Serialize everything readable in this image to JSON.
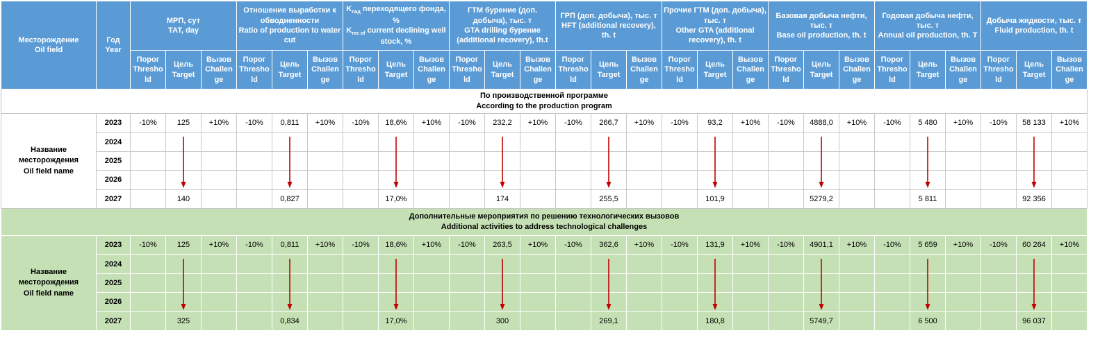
{
  "header": {
    "field": "Месторождение\nOil field",
    "year": "Год\nYear",
    "groups": [
      "МРП, сут\nТАТ, day",
      "Отношение выработки к обводненности\nRatio of production to water cut",
      "K_пад переходящего фонда, %\nK_rec of current declining well stock, %",
      "ГТМ бурение (доп. добыча), тыс. т\nGTA drilling бурение (additional recovery), th.t",
      "ГРП (доп. добыча), тыс. т\nHFT (additional recovery), th. t",
      "Прочие ГТМ (доп. добыча), тыс. т\nOther  GTA (additional recovery), th. t",
      "Базовая добыча нефти, тыс. т\nBase oil production, th. t",
      "Годовая добыча нефти, тыс. т\nAnnual oil production, th. T",
      "Добыча жидкости, тыс. т\nFluid  production, th. t"
    ],
    "sub": [
      "Порог\nThresho\nld",
      "Цель\nTarget",
      "Вызов\nChallen\nge"
    ]
  },
  "sections": [
    {
      "title": "По производственной программе\nAccording to the production program",
      "field_name": "Название\nместорождения\nOil field name",
      "years": [
        "2023",
        "2024",
        "2025",
        "2026",
        "2027"
      ],
      "threshold": "-10%",
      "challenge": "+10%",
      "start": [
        "125",
        "0,811",
        "18,6%",
        "232,2",
        "266,7",
        "93,2",
        "4888,0",
        "5 480",
        "58 133"
      ],
      "end": [
        "140",
        "0,827",
        "17,0%",
        "174",
        "255,5",
        "101,9",
        "5279,2",
        "5 811",
        "92 356"
      ]
    },
    {
      "title": "Дополнительные мероприятия по решению технологических вызовов\nAdditional activities to address technological challenges",
      "field_name": "Название\nместорождения\nOil field name",
      "years": [
        "2023",
        "2024",
        "2025",
        "2026",
        "2027"
      ],
      "threshold": "-10%",
      "challenge": "+10%",
      "start": [
        "125",
        "0,811",
        "18,6%",
        "263,5",
        "362,6",
        "131,9",
        "4901,1",
        "5 659",
        "60 264"
      ],
      "end": [
        "325",
        "0,834",
        "17,0%",
        "300",
        "269,1",
        "180,8",
        "5749,7",
        "6 500",
        "96 037"
      ]
    }
  ],
  "colors": {
    "header": "#5b9bd5",
    "green": "#c5e0b4",
    "arrow": "#c00000"
  }
}
